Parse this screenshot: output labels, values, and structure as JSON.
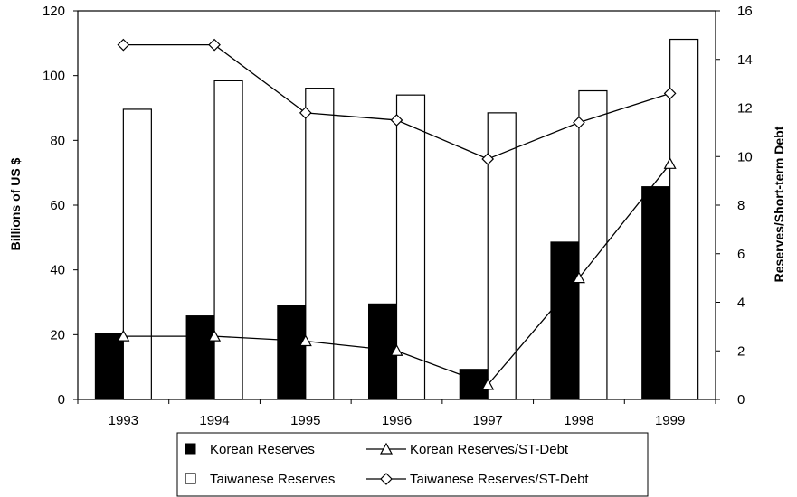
{
  "chart_data": {
    "type": "bar",
    "categories": [
      "1993",
      "1994",
      "1995",
      "1996",
      "1997",
      "1998",
      "1999"
    ],
    "series": [
      {
        "name": "Korean Reserves",
        "kind": "bar",
        "axis": "left",
        "fill": "#000000",
        "values": [
          20.3,
          25.8,
          28.9,
          29.5,
          9.3,
          48.6,
          65.7
        ]
      },
      {
        "name": "Taiwanese Reserves",
        "kind": "bar",
        "axis": "left",
        "fill": "#ffffff",
        "values": [
          89.6,
          98.4,
          96.1,
          94.0,
          88.5,
          95.3,
          111.2
        ]
      },
      {
        "name": "Korean Reserves/ST-Debt",
        "kind": "line",
        "axis": "right",
        "marker": "triangle",
        "values": [
          2.6,
          2.6,
          2.4,
          2.0,
          0.6,
          5.0,
          9.7
        ]
      },
      {
        "name": "Taiwanese Reserves/ST-Debt",
        "kind": "line",
        "axis": "right",
        "marker": "diamond",
        "values": [
          14.6,
          14.6,
          11.8,
          11.5,
          9.9,
          11.4,
          12.6
        ]
      }
    ],
    "ylabel": "Billions of US $",
    "y2label": "Reserves/Short-term Debt",
    "ylim": [
      0,
      120
    ],
    "y2lim": [
      0,
      16
    ],
    "yticks": [
      "0",
      "20",
      "40",
      "60",
      "80",
      "100",
      "120"
    ],
    "y2ticks": [
      "0",
      "2",
      "4",
      "6",
      "8",
      "10",
      "12",
      "14",
      "16"
    ],
    "grid": false,
    "legend_position": "bottom"
  }
}
